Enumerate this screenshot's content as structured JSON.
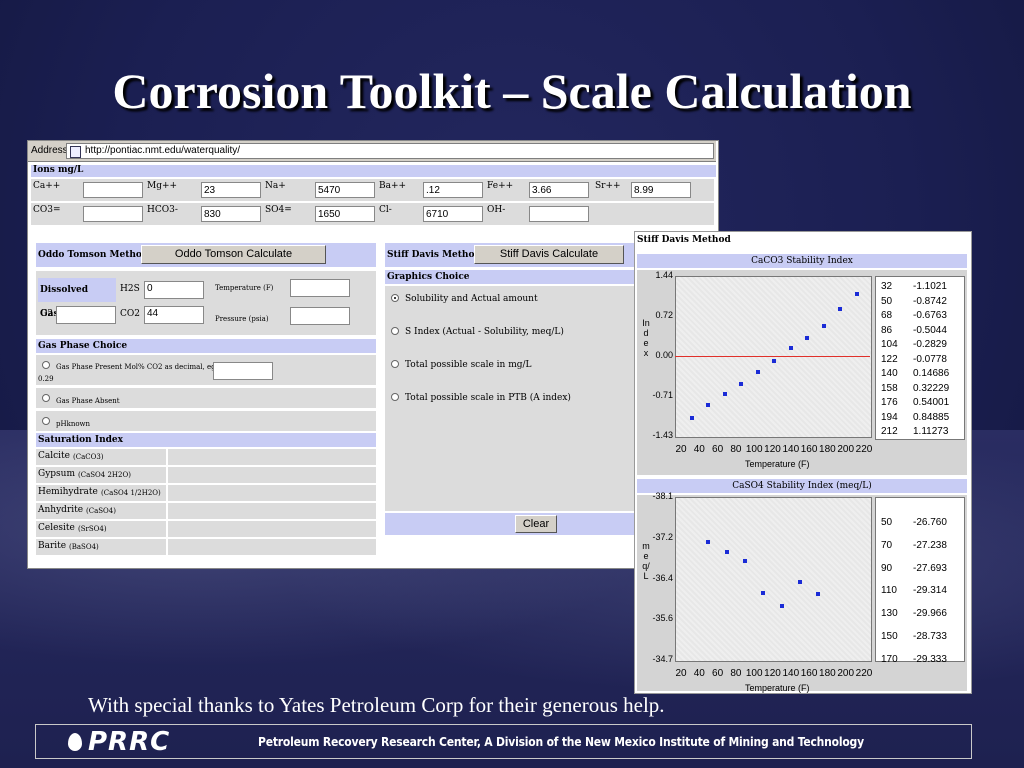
{
  "slide": {
    "title": "Corrosion Toolkit – Scale Calculation",
    "caption": "With special thanks to Yates Petroleum Corp for their generous help.",
    "logo": "PRRC",
    "footer": "Petroleum Recovery Research Center, A Division of the New Mexico Institute of Mining and Technology"
  },
  "browser": {
    "address_label": "Address",
    "url": "http://pontiac.nmt.edu/waterquality/"
  },
  "ions": {
    "header": "Ions mg/L",
    "row1": [
      {
        "label": "Ca++",
        "value": ""
      },
      {
        "label": "Mg++",
        "value": "23"
      },
      {
        "label": "Na+",
        "value": "5470"
      },
      {
        "label": "Ba++",
        "value": ".12"
      },
      {
        "label": "Fe++",
        "value": "3.66"
      },
      {
        "label": "Sr++",
        "value": "8.99"
      }
    ],
    "row2": [
      {
        "label": "CO3=",
        "value": ""
      },
      {
        "label": "HCO3-",
        "value": "830"
      },
      {
        "label": "SO4=",
        "value": "1650"
      },
      {
        "label": "Cl-",
        "value": "6710"
      },
      {
        "label": "OH-",
        "value": ""
      }
    ]
  },
  "oddo": {
    "method_label": "Oddo Tomson Method",
    "button": "Oddo Tomson Calculate",
    "dissolved_gases": "Dissolved Gases",
    "h2s_label": "H2S",
    "h2s_value": "0",
    "o2_label": "O2",
    "o2_value": "",
    "co2_label": "CO2",
    "co2_value": "44",
    "temperature_label": "Temperature (F)",
    "pressure_label": "Pressure (psia)",
    "gas_phase_choice": "Gas Phase Choice",
    "gas_opt1": "Gas Phase Present Mol% CO2 as decimal, eg",
    "gas_opt1_value": "0.29",
    "gas_opt2": "Gas Phase Absent",
    "gas_opt3": "pHknown",
    "saturation_index": "Saturation Index",
    "minerals": [
      {
        "name": "Calcite",
        "formula": "(CaCO3)"
      },
      {
        "name": "Gypsum",
        "formula": "(CaSO4 2H2O)"
      },
      {
        "name": "Hemihydrate",
        "formula": "(CaSO4 1/2H2O)"
      },
      {
        "name": "Anhydrite",
        "formula": "(CaSO4)"
      },
      {
        "name": "Celesite",
        "formula": "(SrSO4)"
      },
      {
        "name": "Barite",
        "formula": "(BaSO4)"
      }
    ]
  },
  "stiff": {
    "method_label": "Stiff Davis Method",
    "button": "Stiff Davis Calculate",
    "graphics_choice": "Graphics Choice",
    "options": [
      "Solubility and Actual amount",
      "S Index (Actual - Solubility, meq/L)",
      "Total possible scale in mg/L",
      "Total possible scale in PTB (A index)"
    ],
    "clear_button": "Clear"
  },
  "chart_window": {
    "title": "Stiff Davis Method"
  },
  "chart_data": [
    {
      "type": "scatter",
      "title": "CaCO3 Stability Index",
      "xlabel": "Temperature (F)",
      "ylabel": "Index",
      "xticks": [
        "20",
        "40",
        "60",
        "80",
        "100",
        "120",
        "140",
        "160",
        "180",
        "200",
        "220"
      ],
      "yticks": [
        "1.44",
        "0.72",
        "0.00",
        "-0.71",
        "-1.43"
      ],
      "xlim": [
        20,
        220
      ],
      "ylim": [
        -1.43,
        1.44
      ],
      "reference_line": 0,
      "reference_color": "#e0302a",
      "point_color": "#1a2bd6",
      "x": [
        32,
        50,
        68,
        86,
        104,
        122,
        140,
        158,
        176,
        194,
        212
      ],
      "y_labels": [
        "-1.1021",
        "-0.8742",
        "-0.6763",
        "-0.5044",
        "-0.2829",
        "-0.0778",
        "0.14686",
        "0.32229",
        "0.54001",
        "0.84885",
        "1.11273"
      ],
      "y": [
        -1.1021,
        -0.8742,
        -0.6763,
        -0.5044,
        -0.2829,
        -0.0778,
        0.14686,
        0.32229,
        0.54001,
        0.84885,
        1.11273
      ]
    },
    {
      "type": "scatter",
      "title": "CaSO4 Stability Index (meq/L)",
      "xlabel": "Temperature (F)",
      "ylabel": "meq/L",
      "xticks": [
        "20",
        "40",
        "60",
        "80",
        "100",
        "120",
        "140",
        "160",
        "180",
        "200",
        "220"
      ],
      "yticks": [
        "-38.1",
        "-37.2",
        "-36.4",
        "-35.6",
        "-34.7"
      ],
      "ytick_values": [
        -38.1,
        -37.2,
        -36.4,
        -35.6,
        -34.7
      ],
      "xlim": [
        20,
        220
      ],
      "point_color": "#1a2bd6",
      "x": [
        50,
        70,
        90,
        110,
        130,
        150,
        170
      ],
      "y_labels": [
        "-26.760",
        "-27.238",
        "-27.693",
        "-29.314",
        "-29.966",
        "-28.733",
        "-29.333"
      ],
      "y": [
        -26.76,
        -27.238,
        -27.693,
        -29.314,
        -29.966,
        -28.733,
        -29.333
      ]
    }
  ]
}
